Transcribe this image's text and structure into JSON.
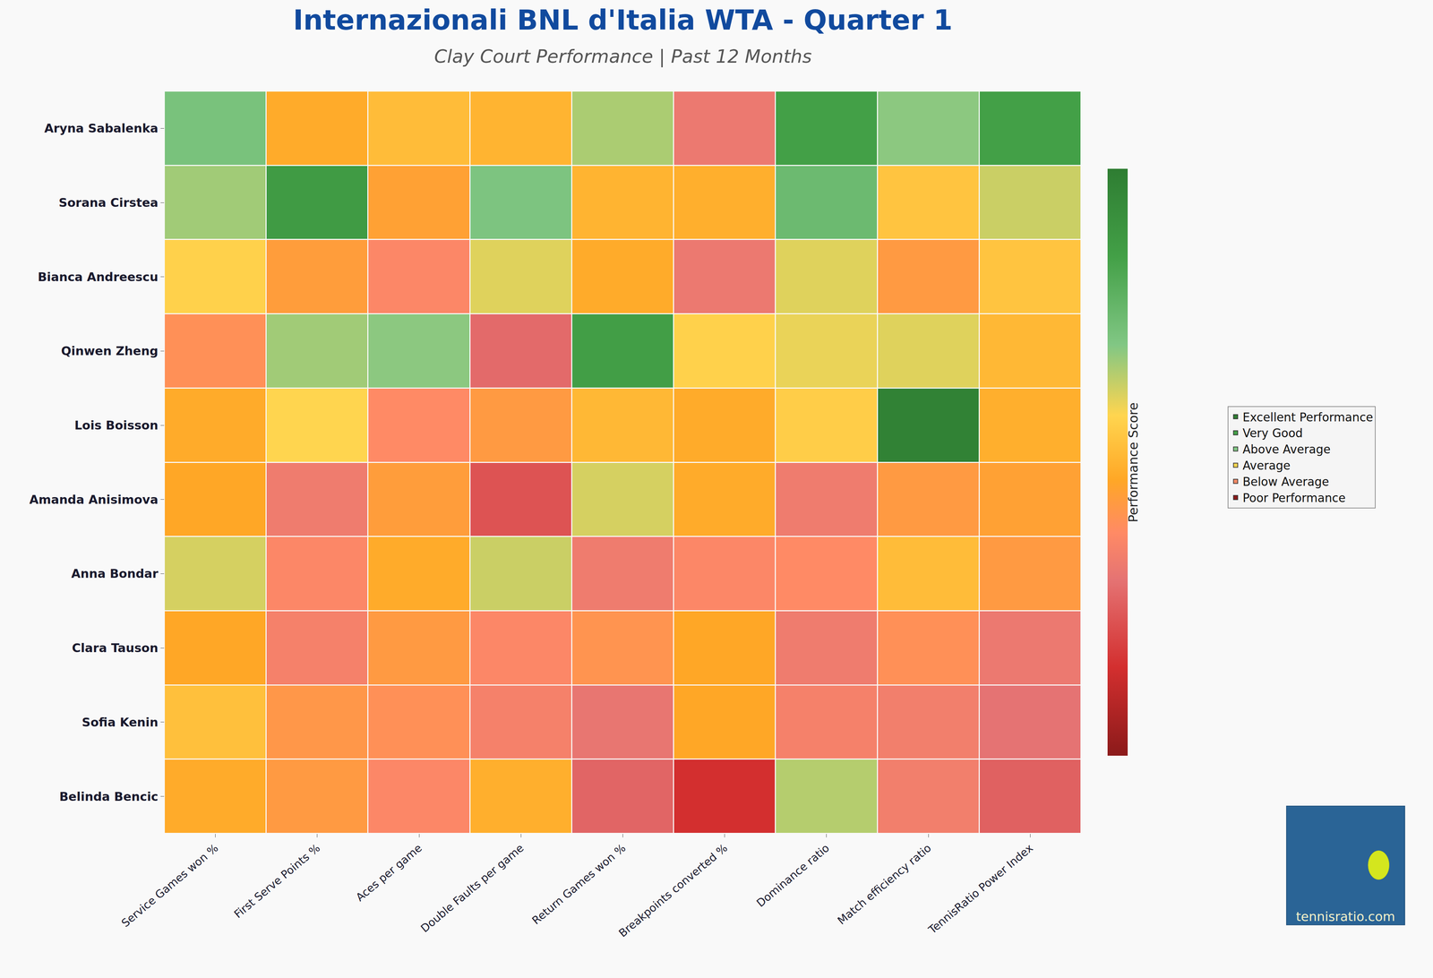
{
  "chart_data": {
    "type": "heatmap",
    "title": "Internazionali BNL d'Italia WTA - Quarter 1",
    "subtitle": "Clay Court Performance | Past 12 Months",
    "rows": [
      "Aryna Sabalenka",
      "Sorana Cirstea",
      "Bianca Andreescu",
      "Qinwen Zheng",
      "Lois Boisson",
      "Amanda Anisimova",
      "Anna Bondar",
      "Clara Tauson",
      "Sofia Kenin",
      "Belinda Bencic"
    ],
    "columns": [
      "Service Games won %",
      "First Serve Points %",
      "Aces per game",
      "Double Faults per game",
      "Return Games won %",
      "Breakpoints converted %",
      "Dominance ratio",
      "Match efficiency ratio",
      "TennisRatio Power Index"
    ],
    "values": [
      [
        72,
        48,
        52,
        50,
        66,
        32,
        85,
        69,
        85
      ],
      [
        67,
        87,
        45,
        71,
        50,
        49,
        75,
        54,
        63
      ],
      [
        57,
        44,
        37,
        61,
        48,
        32,
        61,
        43,
        54
      ],
      [
        40,
        67,
        69,
        28,
        86,
        57,
        60,
        61,
        51
      ],
      [
        48,
        58,
        38,
        43,
        51,
        48,
        56,
        98,
        49
      ],
      [
        47,
        33,
        44,
        23,
        62,
        48,
        33,
        43,
        45
      ],
      [
        62,
        37,
        48,
        63,
        33,
        37,
        38,
        52,
        43
      ],
      [
        47,
        35,
        43,
        37,
        41,
        47,
        33,
        40,
        32
      ],
      [
        53,
        42,
        40,
        35,
        31,
        47,
        35,
        34,
        30
      ],
      [
        48,
        43,
        37,
        49,
        27,
        15,
        65,
        34,
        26
      ]
    ],
    "zlim": [
      0,
      100
    ],
    "colorbar_title": "Performance Score",
    "legend": "right",
    "legend_items": [
      {
        "name": "Excellent Performance",
        "color": "#2e7d32"
      },
      {
        "name": "Very Good",
        "color": "#43a047"
      },
      {
        "name": "Above Average",
        "color": "#81c784"
      },
      {
        "name": "Average",
        "color": "#ffd54f"
      },
      {
        "name": "Below Average",
        "color": "#ff8a65"
      },
      {
        "name": "Poor Performance",
        "color": "#8b1a1a"
      }
    ],
    "watermark": "tennisratio.com"
  }
}
